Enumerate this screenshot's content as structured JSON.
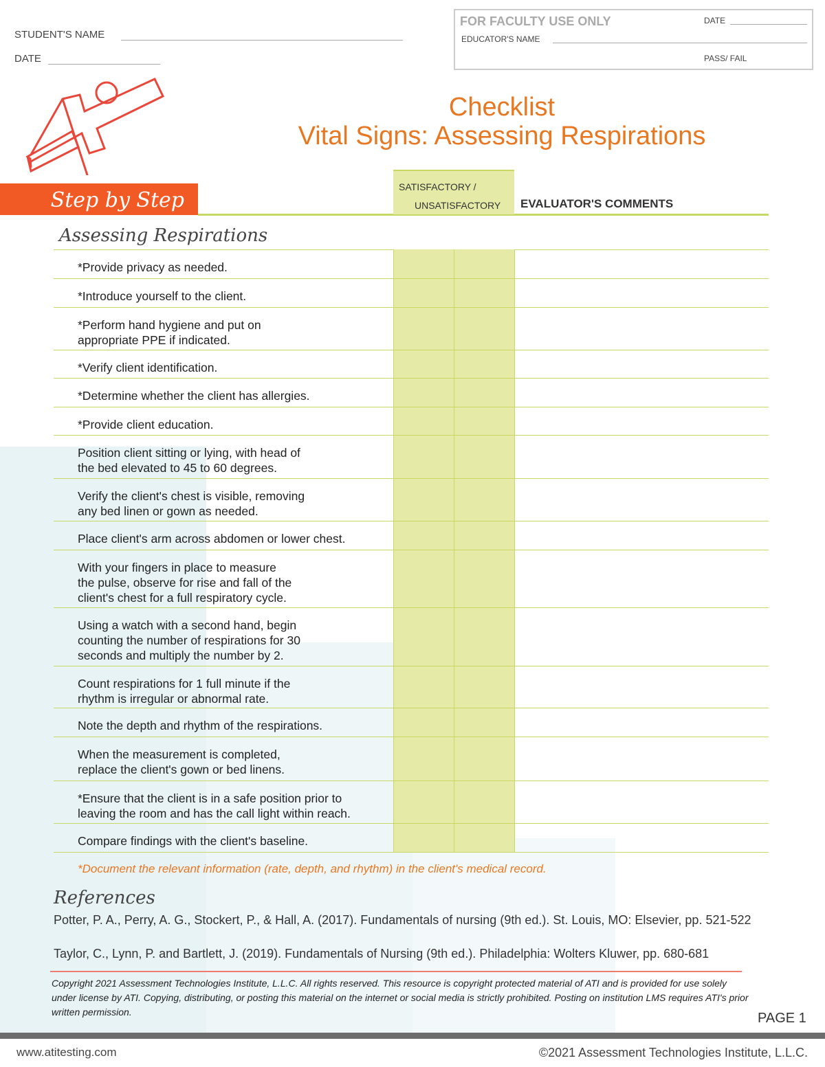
{
  "header": {
    "student_name_label": "STUDENT'S NAME",
    "date_label": "DATE"
  },
  "faculty": {
    "title": "FOR FACULTY USE ONLY",
    "date_label": "DATE",
    "educator_label": "EDUCATOR'S NAME",
    "pass_fail_label": "PASS/ FAIL"
  },
  "title": {
    "line1": "Checklist",
    "line2": "Vital Signs: Assessing Respirations"
  },
  "table": {
    "step_by_step": "Step by Step",
    "sat_label": "SATISFACTORY /",
    "unsat_label": "UNSATISFACTORY",
    "comments_label": "EVALUATOR'S COMMENTS",
    "section": "Assessing Respirations",
    "steps": [
      "*Provide privacy as needed.",
      "*Introduce yourself to the client.",
      "*Perform hand hygiene and put on\nappropriate PPE if indicated.",
      "*Verify client identification.",
      "*Determine whether the client has allergies.",
      "*Provide client education.",
      "Position client sitting or lying, with head of\nthe bed elevated to 45 to 60 degrees.",
      "Verify the client's chest is visible, removing\nany bed linen or gown as needed.",
      "Place client's arm across abdomen or lower chest.",
      "With your fingers in place to measure\nthe pulse, observe for rise and fall of the\nclient's chest for a full respiratory cycle.",
      "Using a watch with a second hand, begin\ncounting the number of respirations for 30\nseconds and multiply the number by 2.",
      "Count respirations for 1 full minute if the\nrhythm is irregular or abnormal rate.",
      "Note the depth and rhythm of the respirations.",
      "When the measurement is completed,\nreplace the client's gown or bed linens.",
      "*Ensure that the client is in a safe position prior to\nleaving the room and has the call light within reach.",
      "Compare findings with the client's baseline."
    ],
    "note": "*Document the relevant information (rate, depth, and rhythm) in the client's medical record."
  },
  "references": {
    "title": "References",
    "items": [
      "Potter, P. A., Perry, A. G., Stockert, P., & Hall, A. (2017). Fundamentals of nursing (9th ed.). St. Louis, MO:  Elsevier, pp. 521-522",
      "Taylor, C., Lynn, P. and Bartlett, J. (2019). Fundamentals of Nursing (9th ed.). Philadelphia: Wolters Kluwer, pp. 680-681"
    ]
  },
  "copyright": "Copyright 2021 Assessment Technologies Institute, L.L.C. All rights reserved. This resource is copyright protected material of ATI and is provided for use solely under license by ATI.  Copying, distributing, or posting this material on the internet or social media is strictly prohibited.  Posting on institution LMS requires ATI's prior written permission.",
  "page": "PAGE 1",
  "footer": {
    "website": "www.atitesting.com",
    "copyright": "©2021 Assessment Technologies Institute, L.L.C."
  },
  "colors": {
    "accent": "#f15a24",
    "title": "#e87722",
    "green": "#c8d864",
    "fill": "#e5eba7"
  }
}
